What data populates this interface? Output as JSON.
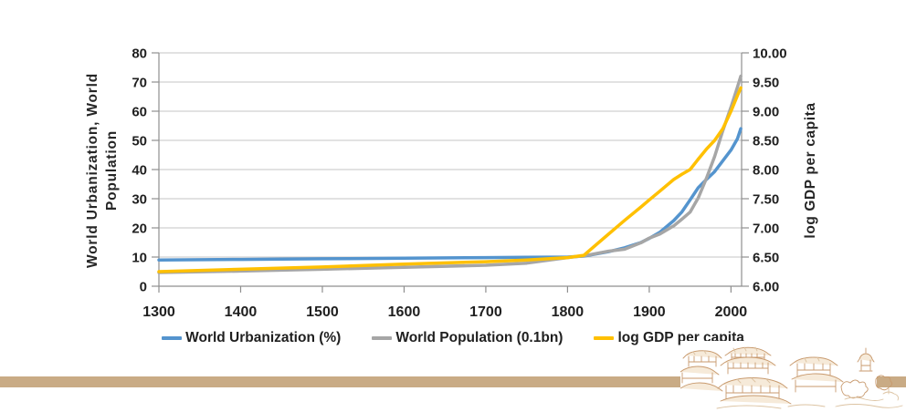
{
  "chart_data": {
    "type": "line",
    "title": "",
    "x_axis": {
      "label": "",
      "range": [
        1300,
        2013
      ],
      "ticks": [
        1300,
        1400,
        1500,
        1600,
        1700,
        1800,
        1900,
        2000
      ]
    },
    "y_left": {
      "title_lines": [
        "World Urbanization, World",
        "Population"
      ],
      "range": [
        0,
        80
      ],
      "ticks": [
        0,
        10,
        20,
        30,
        40,
        50,
        60,
        70,
        80
      ]
    },
    "y_right": {
      "title": "log GDP per capita",
      "range": [
        6,
        10
      ],
      "ticks": [
        6.0,
        6.5,
        7.0,
        7.5,
        8.0,
        8.5,
        9.0,
        9.5,
        10.0
      ],
      "tick_decimals": 2
    },
    "x": [
      1300,
      1400,
      1500,
      1600,
      1700,
      1750,
      1800,
      1820,
      1850,
      1870,
      1890,
      1900,
      1913,
      1930,
      1940,
      1950,
      1960,
      1970,
      1980,
      1990,
      2000,
      2008,
      2012
    ],
    "series": [
      {
        "name": "World Urbanization (%)",
        "axis": "left",
        "color": "#5494ce",
        "values": [
          9.0,
          9.2,
          9.4,
          9.6,
          9.8,
          9.9,
          10.0,
          10.3,
          11.8,
          13.2,
          15.0,
          16.4,
          18.5,
          22.5,
          25.5,
          29.6,
          33.8,
          36.6,
          39.3,
          43.0,
          46.7,
          50.6,
          54.0
        ]
      },
      {
        "name": "World Population (0.1bn)",
        "axis": "left",
        "color": "#a6a6a6",
        "values": [
          4.7,
          5.2,
          5.8,
          6.5,
          7.2,
          7.9,
          9.8,
          10.4,
          12.0,
          12.7,
          14.9,
          16.5,
          17.9,
          20.7,
          23.0,
          25.4,
          30.3,
          37.0,
          44.5,
          53.3,
          61.4,
          68.3,
          72.0
        ]
      },
      {
        "name": "log GDP per capita",
        "axis": "right",
        "color": "#ffc000",
        "values": [
          6.25,
          6.29,
          6.33,
          6.38,
          6.42,
          6.45,
          6.49,
          6.53,
          6.89,
          7.13,
          7.36,
          7.48,
          7.63,
          7.83,
          7.92,
          8.0,
          8.18,
          8.35,
          8.5,
          8.7,
          9.0,
          9.27,
          9.4
        ]
      }
    ],
    "legend_position": "bottom",
    "grid": "horizontal",
    "gridline_color": "#c6c6c6",
    "axis_color": "#8f8f8f",
    "label_color": "#1f1f1f"
  },
  "decor": {
    "bottom_bar_color": "#c9ab85",
    "sketch_stroke_color": "#c89a6e"
  }
}
